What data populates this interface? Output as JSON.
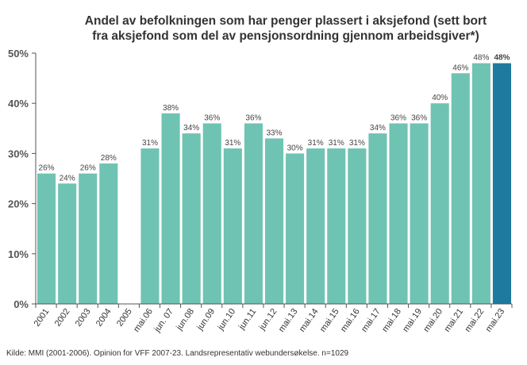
{
  "chart_data": {
    "type": "bar",
    "title_lines": [
      "Andel av befolkningen som har penger plassert i aksjefond (sett bort",
      "fra aksjefond som del av pensjonsordning gjennom arbeidsgiver*)"
    ],
    "xlabel": "",
    "ylabel": "",
    "ylim": [
      0,
      50
    ],
    "yticks": [
      0,
      10,
      20,
      30,
      40,
      50
    ],
    "ytick_labels": [
      "0%",
      "10%",
      "20%",
      "30%",
      "40%",
      "50%"
    ],
    "categories": [
      "2001",
      "2002",
      "2003",
      "2004",
      "2005",
      "mai.06",
      "jun. 07",
      "jun.08",
      "jun.09",
      "jun.10",
      "jun.11",
      "jun.12",
      "mai.13",
      "mai.14",
      "mai.15",
      "mai.16",
      "mai.17",
      "mai.18",
      "mai.19",
      "mai.20",
      "mai.21",
      "mai.22",
      "mai.23"
    ],
    "values": [
      26,
      24,
      26,
      28,
      null,
      31,
      38,
      34,
      36,
      31,
      36,
      33,
      30,
      31,
      31,
      31,
      34,
      36,
      36,
      40,
      46,
      48,
      48
    ],
    "value_labels": [
      "26%",
      "24%",
      "26%",
      "28%",
      "",
      "31%",
      "38%",
      "34%",
      "36%",
      "31%",
      "36%",
      "33%",
      "30%",
      "31%",
      "31%",
      "31%",
      "34%",
      "36%",
      "36%",
      "40%",
      "46%",
      "48%",
      "48%"
    ],
    "highlight_index": 22,
    "grid": false,
    "legend": "none",
    "colors": {
      "bar": "#6fc3b2",
      "highlight": "#1f7aa0",
      "axis": "#555555"
    }
  },
  "footer": "Kilde: MMI (2001-2006). Opinion for VFF 2007-23. Landsrepresentativ webundersøkelse. n=1029"
}
